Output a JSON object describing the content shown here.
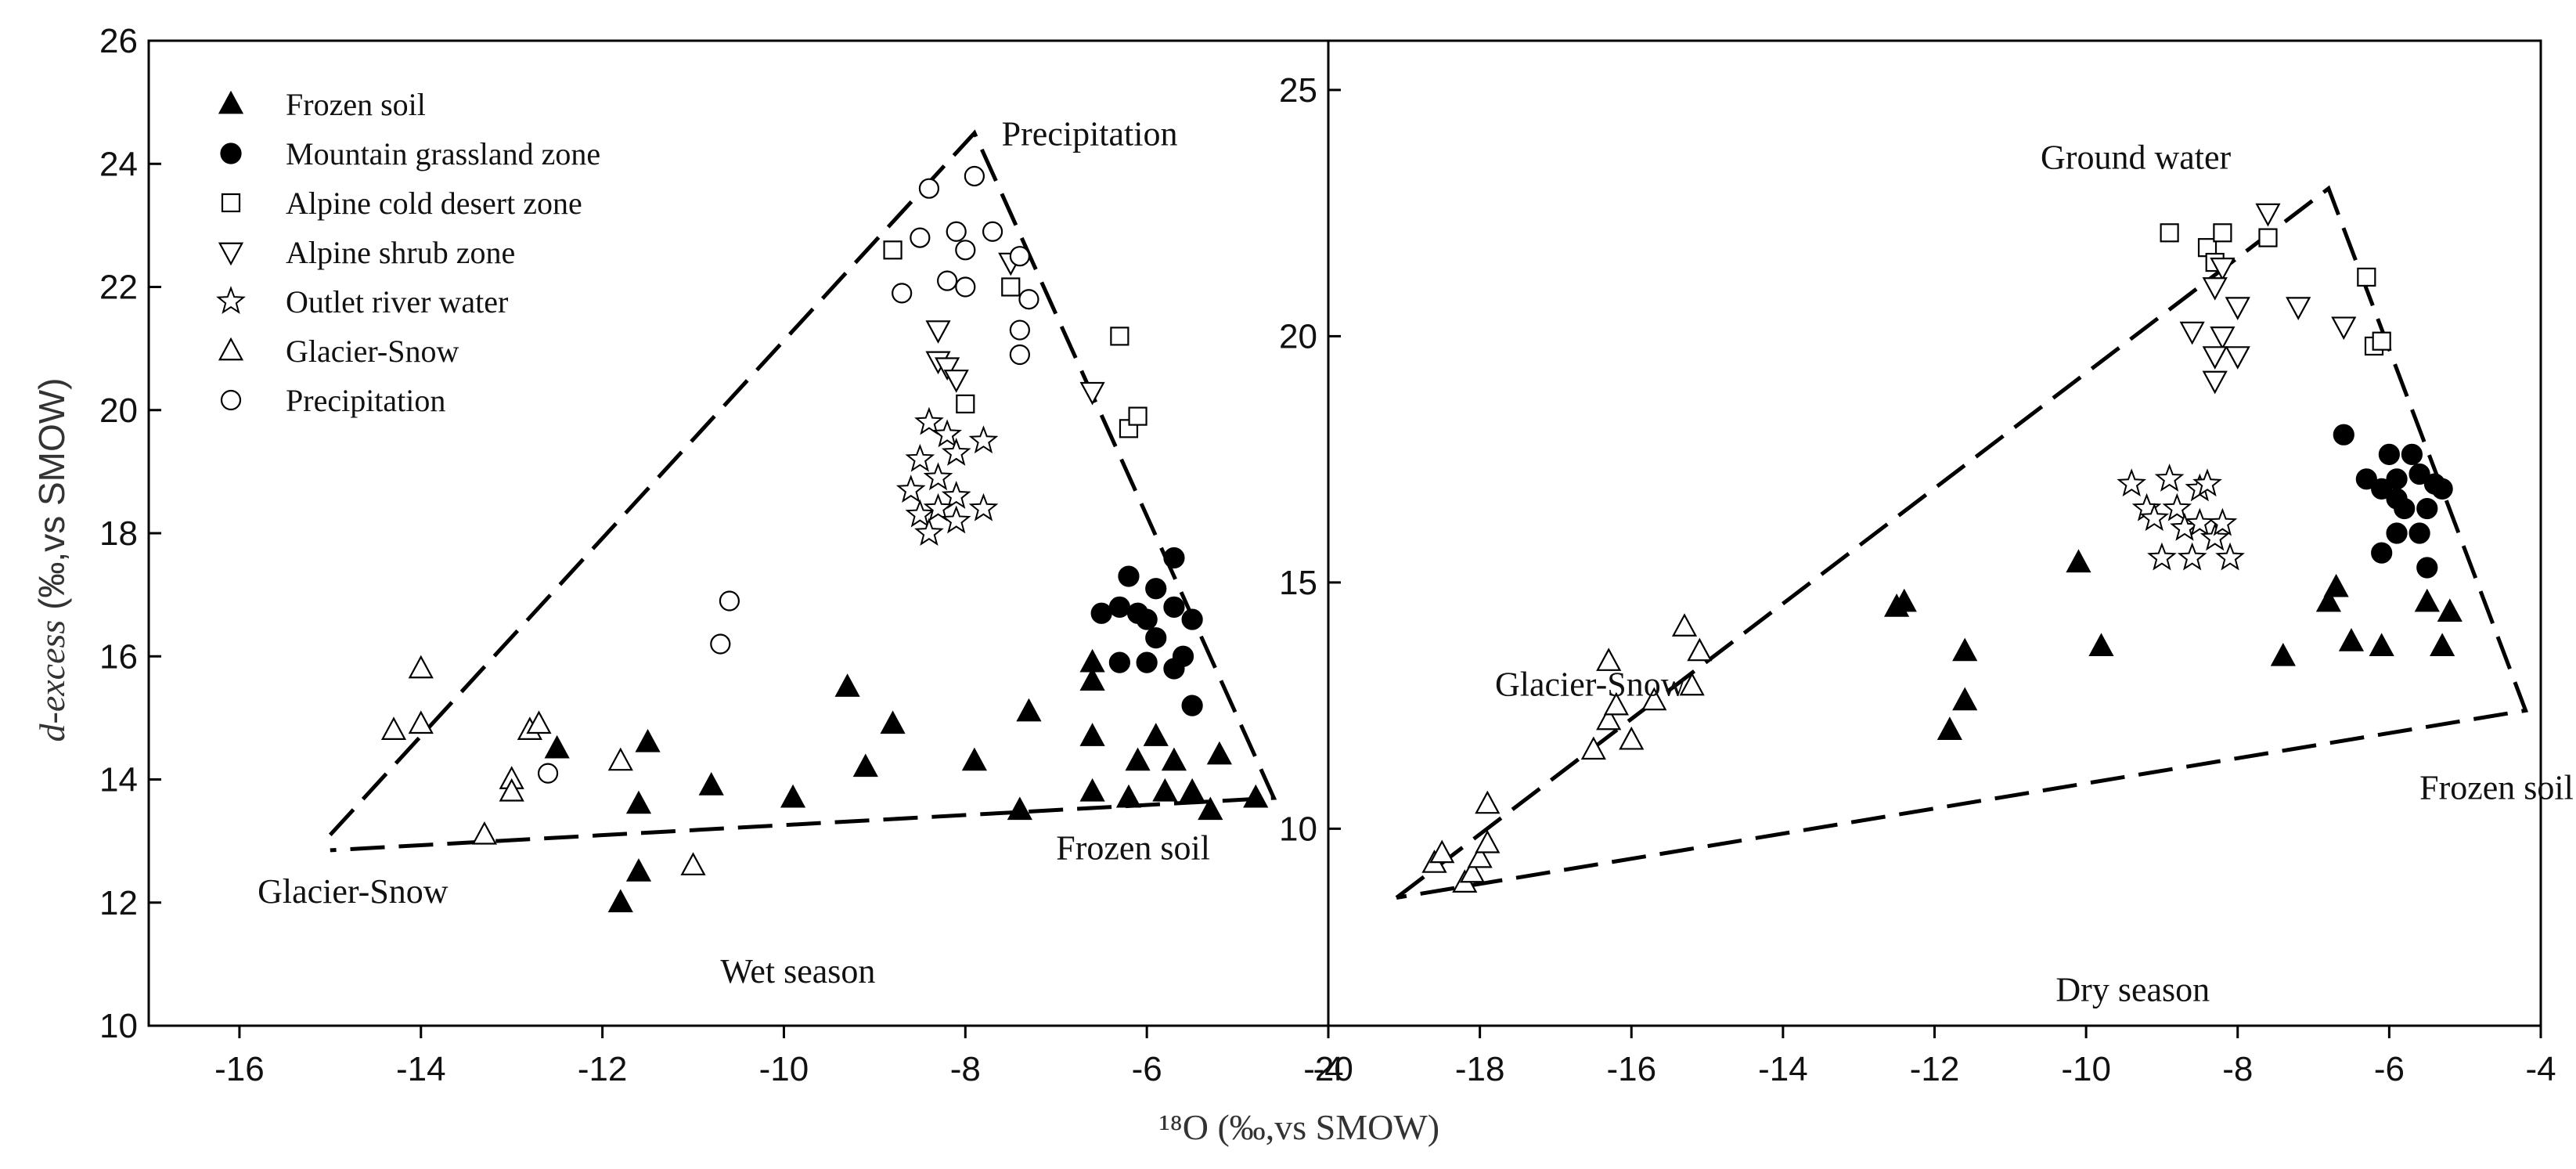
{
  "figure": {
    "x_axis_label": "¹⁸O (‰,vs SMOW)",
    "y_axis_label_italic": "d-excess",
    "y_axis_label_rest": " (‰,vs SMOW)"
  },
  "legend": {
    "entries": [
      {
        "marker": "triangle-filled",
        "label": "Frozen soil"
      },
      {
        "marker": "circle-filled",
        "label": "Mountain grassland zone"
      },
      {
        "marker": "square-open",
        "label": "Alpine cold desert zone"
      },
      {
        "marker": "triangle-down-open",
        "label": "Alpine shrub zone"
      },
      {
        "marker": "star-open",
        "label": "Outlet river water"
      },
      {
        "marker": "triangle-open",
        "label": "Glacier-Snow"
      },
      {
        "marker": "circle-open",
        "label": "Precipitation"
      }
    ]
  },
  "chart_data": [
    {
      "type": "scatter",
      "title": "Wet season",
      "xlabel": "¹⁸O (‰,vs SMOW)",
      "ylabel": "d-excess (‰,vs SMOW)",
      "xlim": [
        -17,
        -4
      ],
      "ylim": [
        10,
        26
      ],
      "x_ticks": [
        -16,
        -14,
        -12,
        -10,
        -8,
        -6,
        -4
      ],
      "x_tick_labels": [
        "-16",
        "-14",
        "-12",
        "-10",
        "-8",
        "-6",
        "-4"
      ],
      "y_ticks": [
        10,
        12,
        14,
        16,
        18,
        20,
        22,
        24,
        26
      ],
      "y_tick_labels": [
        "10",
        "12",
        "14",
        "16",
        "18",
        "20",
        "22",
        "24",
        "26"
      ],
      "annotations": [
        {
          "text": "Precipitation",
          "x": -7.6,
          "y": 24.3
        },
        {
          "text": "Frozen soil",
          "x": -7.0,
          "y": 12.7
        },
        {
          "text": "Glacier-Snow",
          "x": -15.8,
          "y": 12.0
        },
        {
          "text": "Wet  season",
          "x": -10.7,
          "y": 10.7
        }
      ],
      "mixing_lines": [
        {
          "x": [
            -15.0,
            -7.9,
            -4.6,
            -15.0
          ],
          "y": [
            13.1,
            24.5,
            13.7,
            12.85
          ]
        }
      ],
      "series": [
        {
          "name": "Frozen soil",
          "marker": "triangle-filled",
          "points": [
            [
              -11.8,
              12.0
            ],
            [
              -11.6,
              12.5
            ],
            [
              -11.6,
              13.6
            ],
            [
              -11.5,
              14.6
            ],
            [
              -12.5,
              14.5
            ],
            [
              -10.8,
              13.9
            ],
            [
              -9.9,
              13.7
            ],
            [
              -9.3,
              15.5
            ],
            [
              -9.1,
              14.2
            ],
            [
              -8.8,
              14.9
            ],
            [
              -7.9,
              14.3
            ],
            [
              -7.3,
              15.1
            ],
            [
              -7.4,
              13.5
            ],
            [
              -6.6,
              13.8
            ],
            [
              -6.6,
              14.7
            ],
            [
              -6.6,
              15.9
            ],
            [
              -6.6,
              15.6
            ],
            [
              -6.2,
              13.7
            ],
            [
              -6.1,
              14.3
            ],
            [
              -5.9,
              14.7
            ],
            [
              -5.8,
              13.8
            ],
            [
              -5.7,
              14.3
            ],
            [
              -5.5,
              13.8
            ],
            [
              -5.3,
              13.5
            ],
            [
              -5.2,
              14.4
            ],
            [
              -4.8,
              13.7
            ]
          ]
        },
        {
          "name": "Mountain grassland zone",
          "marker": "circle-filled",
          "points": [
            [
              -6.5,
              16.7
            ],
            [
              -6.3,
              16.8
            ],
            [
              -6.2,
              17.3
            ],
            [
              -6.1,
              16.7
            ],
            [
              -6.0,
              16.6
            ],
            [
              -5.9,
              17.1
            ],
            [
              -5.9,
              16.3
            ],
            [
              -5.7,
              17.6
            ],
            [
              -5.7,
              16.8
            ],
            [
              -5.7,
              15.8
            ],
            [
              -5.6,
              16.0
            ],
            [
              -5.5,
              16.6
            ],
            [
              -5.5,
              15.2
            ],
            [
              -6.3,
              15.9
            ],
            [
              -6.0,
              15.9
            ]
          ]
        },
        {
          "name": "Alpine cold desert zone",
          "marker": "square-open",
          "points": [
            [
              -8.8,
              22.6
            ],
            [
              -7.5,
              22.0
            ],
            [
              -8.0,
              20.1
            ],
            [
              -6.3,
              21.2
            ],
            [
              -6.2,
              19.7
            ],
            [
              -6.1,
              19.9
            ]
          ]
        },
        {
          "name": "Alpine shrub zone",
          "marker": "triangle-down-open",
          "points": [
            [
              -8.3,
              21.3
            ],
            [
              -8.3,
              20.8
            ],
            [
              -8.2,
              20.7
            ],
            [
              -8.1,
              20.5
            ],
            [
              -7.5,
              22.4
            ],
            [
              -6.6,
              20.3
            ]
          ]
        },
        {
          "name": "Outlet river water",
          "marker": "star-open",
          "points": [
            [
              -8.4,
              19.8
            ],
            [
              -8.2,
              19.6
            ],
            [
              -8.5,
              19.2
            ],
            [
              -8.1,
              19.3
            ],
            [
              -7.8,
              19.5
            ],
            [
              -8.3,
              18.9
            ],
            [
              -8.6,
              18.7
            ],
            [
              -8.1,
              18.6
            ],
            [
              -8.5,
              18.3
            ],
            [
              -8.3,
              18.4
            ],
            [
              -7.8,
              18.4
            ],
            [
              -8.1,
              18.2
            ],
            [
              -8.4,
              18.0
            ]
          ]
        },
        {
          "name": "Glacier-Snow",
          "marker": "triangle-open",
          "points": [
            [
              -14.3,
              14.8
            ],
            [
              -14.0,
              15.8
            ],
            [
              -14.0,
              14.9
            ],
            [
              -13.3,
              13.1
            ],
            [
              -13.0,
              14.0
            ],
            [
              -13.0,
              13.8
            ],
            [
              -12.8,
              14.8
            ],
            [
              -12.7,
              14.9
            ],
            [
              -11.8,
              14.3
            ],
            [
              -11.0,
              12.6
            ]
          ]
        },
        {
          "name": "Precipitation",
          "marker": "circle-open",
          "points": [
            [
              -8.4,
              23.6
            ],
            [
              -7.9,
              23.8
            ],
            [
              -8.5,
              22.8
            ],
            [
              -8.1,
              22.9
            ],
            [
              -7.7,
              22.9
            ],
            [
              -7.4,
              22.5
            ],
            [
              -8.2,
              22.1
            ],
            [
              -8.0,
              22.6
            ],
            [
              -8.0,
              22.0
            ],
            [
              -8.7,
              21.9
            ],
            [
              -7.3,
              21.8
            ],
            [
              -7.4,
              21.3
            ],
            [
              -7.4,
              20.9
            ],
            [
              -10.6,
              16.9
            ],
            [
              -10.7,
              16.2
            ],
            [
              -12.6,
              14.1
            ]
          ]
        }
      ]
    },
    {
      "type": "scatter",
      "title": "Dry season",
      "xlabel": "¹⁸O (‰,vs SMOW)",
      "ylabel": "d-excess (‰,vs SMOW)",
      "xlim": [
        -20,
        -4
      ],
      "ylim": [
        6,
        26
      ],
      "x_ticks": [
        -20,
        -18,
        -16,
        -14,
        -12,
        -10,
        -8,
        -6,
        -4
      ],
      "x_tick_labels": [
        "-20",
        "-18",
        "-16",
        "-14",
        "-12",
        "-10",
        "-8",
        "-6",
        "-4"
      ],
      "y_ticks": [
        10,
        15,
        20,
        25
      ],
      "y_tick_labels": [
        "10",
        "15",
        "20",
        "25"
      ],
      "annotations": [
        {
          "text": "Ground water",
          "x": -10.6,
          "y": 23.4
        },
        {
          "text": "Glacier-Snow",
          "x": -17.8,
          "y": 12.7
        },
        {
          "text": "Frozen soil",
          "x": -5.6,
          "y": 10.6
        },
        {
          "text": "Dry season",
          "x": -10.4,
          "y": 6.5
        }
      ],
      "mixing_lines": [
        {
          "x": [
            -19.1,
            -6.8,
            -4.2,
            -19.1
          ],
          "y": [
            8.6,
            23.0,
            12.4,
            8.6
          ]
        }
      ],
      "series": [
        {
          "name": "Frozen soil",
          "marker": "triangle-filled",
          "points": [
            [
              -12.5,
              14.5
            ],
            [
              -12.4,
              14.6
            ],
            [
              -11.6,
              13.6
            ],
            [
              -11.6,
              12.6
            ],
            [
              -11.8,
              12.0
            ],
            [
              -10.1,
              15.4
            ],
            [
              -9.8,
              13.7
            ],
            [
              -7.4,
              13.5
            ],
            [
              -6.8,
              14.6
            ],
            [
              -6.7,
              14.9
            ],
            [
              -6.5,
              13.8
            ],
            [
              -6.1,
              13.7
            ],
            [
              -5.5,
              14.6
            ],
            [
              -5.3,
              13.7
            ],
            [
              -5.2,
              14.4
            ]
          ]
        },
        {
          "name": "Mountain grassland zone",
          "marker": "circle-filled",
          "points": [
            [
              -6.6,
              18.0
            ],
            [
              -6.3,
              17.1
            ],
            [
              -6.1,
              16.9
            ],
            [
              -6.1,
              15.6
            ],
            [
              -6.0,
              17.6
            ],
            [
              -5.9,
              17.1
            ],
            [
              -5.9,
              16.7
            ],
            [
              -5.9,
              16.0
            ],
            [
              -5.8,
              16.5
            ],
            [
              -5.7,
              17.6
            ],
            [
              -5.6,
              17.2
            ],
            [
              -5.6,
              16.0
            ],
            [
              -5.5,
              16.5
            ],
            [
              -5.5,
              15.3
            ],
            [
              -5.4,
              17.0
            ],
            [
              -5.3,
              16.9
            ]
          ]
        },
        {
          "name": "Alpine cold desert zone",
          "marker": "square-open",
          "points": [
            [
              -8.9,
              22.1
            ],
            [
              -8.4,
              21.8
            ],
            [
              -8.3,
              21.5
            ],
            [
              -8.2,
              22.1
            ],
            [
              -7.6,
              22.0
            ],
            [
              -6.3,
              21.2
            ],
            [
              -6.2,
              19.8
            ],
            [
              -6.1,
              19.9
            ]
          ]
        },
        {
          "name": "Alpine shrub zone",
          "marker": "triangle-down-open",
          "points": [
            [
              -7.6,
              22.5
            ],
            [
              -8.2,
              21.4
            ],
            [
              -8.3,
              21.0
            ],
            [
              -8.0,
              20.6
            ],
            [
              -7.2,
              20.6
            ],
            [
              -8.6,
              20.1
            ],
            [
              -8.2,
              20.0
            ],
            [
              -8.3,
              19.6
            ],
            [
              -8.0,
              19.6
            ],
            [
              -8.3,
              19.1
            ],
            [
              -6.6,
              20.2
            ]
          ]
        },
        {
          "name": "Outlet river water",
          "marker": "star-open",
          "points": [
            [
              -9.4,
              17.0
            ],
            [
              -8.9,
              17.1
            ],
            [
              -9.2,
              16.5
            ],
            [
              -9.1,
              16.3
            ],
            [
              -8.8,
              16.5
            ],
            [
              -8.7,
              16.1
            ],
            [
              -8.5,
              16.9
            ],
            [
              -8.4,
              17.0
            ],
            [
              -8.5,
              16.2
            ],
            [
              -8.3,
              15.9
            ],
            [
              -8.2,
              16.2
            ],
            [
              -8.1,
              15.5
            ],
            [
              -9.0,
              15.5
            ],
            [
              -8.6,
              15.5
            ]
          ]
        },
        {
          "name": "Glacier-Snow",
          "marker": "triangle-open",
          "points": [
            [
              -18.6,
              9.3
            ],
            [
              -18.5,
              9.5
            ],
            [
              -18.2,
              8.9
            ],
            [
              -18.1,
              9.1
            ],
            [
              -18.0,
              9.4
            ],
            [
              -17.9,
              9.7
            ],
            [
              -17.9,
              10.5
            ],
            [
              -16.5,
              11.6
            ],
            [
              -16.0,
              11.8
            ],
            [
              -16.3,
              12.2
            ],
            [
              -16.2,
              12.5
            ],
            [
              -16.3,
              13.4
            ],
            [
              -15.7,
              12.6
            ],
            [
              -15.3,
              14.1
            ],
            [
              -15.2,
              12.9
            ],
            [
              -15.1,
              13.6
            ]
          ]
        }
      ]
    }
  ]
}
